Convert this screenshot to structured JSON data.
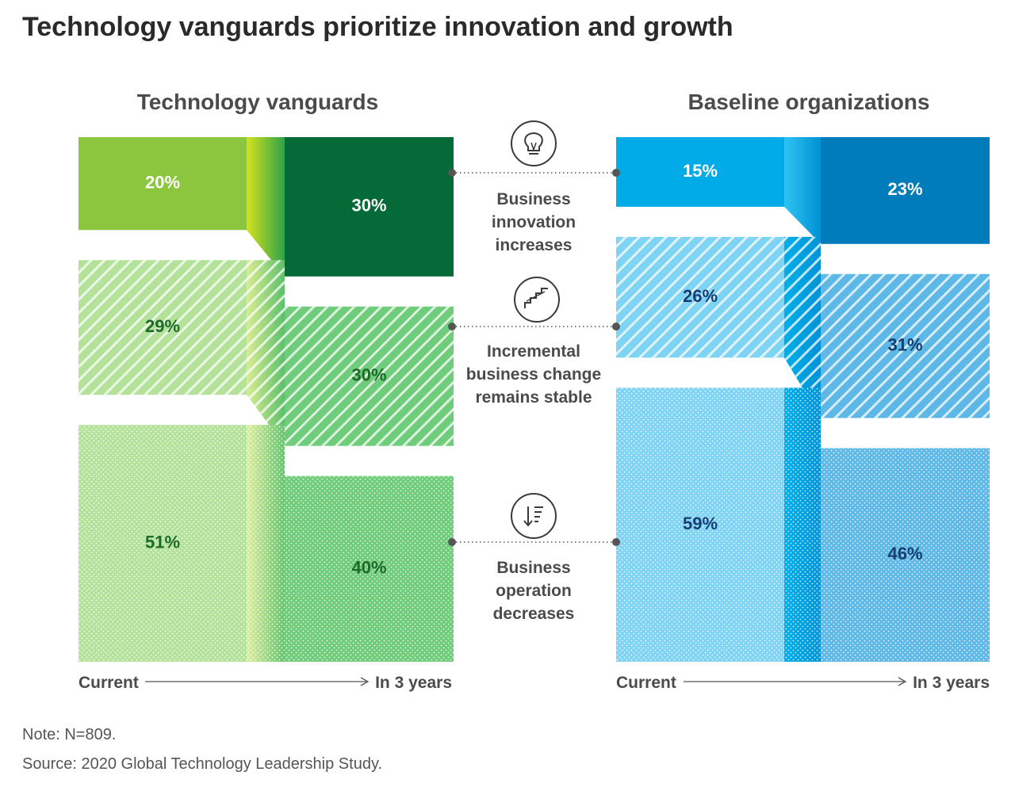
{
  "chart_data": {
    "type": "bar",
    "title": "Technology vanguards prioritize innovation and growth",
    "categories": [
      "Business innovation increases",
      "Incremental business change remains stable",
      "Business operation decreases"
    ],
    "category_lines": [
      [
        "Business",
        "innovation",
        "increases"
      ],
      [
        "Incremental",
        "business change",
        "remains stable"
      ],
      [
        "Business",
        "operation",
        "decreases"
      ]
    ],
    "category_icons": [
      "lightbulb-icon",
      "stairs-icon",
      "sort-descending-icon"
    ],
    "x_start_label": "Current",
    "x_end_label": "In 3 years",
    "groups": [
      {
        "name": "Technology vanguards",
        "series": [
          {
            "name": "Current",
            "values": [
              20,
              29,
              51
            ]
          },
          {
            "name": "In 3 years",
            "values": [
              30,
              30,
              40
            ]
          }
        ]
      },
      {
        "name": "Baseline organizations",
        "series": [
          {
            "name": "Current",
            "values": [
              15,
              26,
              59
            ]
          },
          {
            "name": "In 3 years",
            "values": [
              23,
              31,
              46
            ]
          }
        ]
      }
    ],
    "note": "Note: N=809.",
    "source": "Source: 2020 Global Technology Leadership Study.",
    "colors": {
      "green_light": "#8cc63f",
      "green_dark": "#046a38",
      "green_mid": "#6fcc7a",
      "green_pale": "#b4e29a",
      "green_label": "#1e6a2a",
      "blue_light": "#00abe8",
      "blue_dark": "#007cba",
      "blue_mid": "#5db8e6",
      "blue_pale": "#7fd3f3",
      "blue_label": "#173e74"
    }
  }
}
